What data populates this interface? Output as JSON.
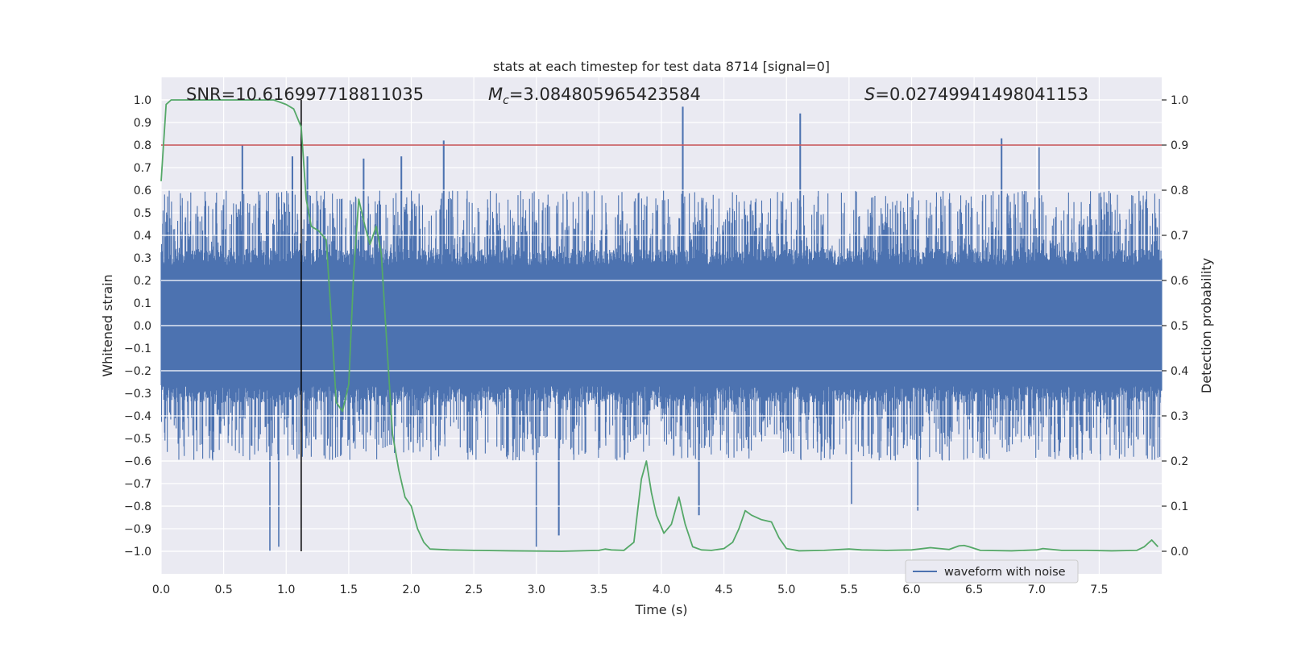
{
  "chart_data": {
    "type": "line",
    "title": "stats at each timestep for test data 8714 [signal=0]",
    "xlabel": "Time (s)",
    "ylabel_left": "Whitened strain",
    "ylabel_right": "Detection probability",
    "xlim": [
      0.0,
      8.0
    ],
    "ylim_left": [
      -1.1,
      1.1
    ],
    "ylim_right": [
      -0.05,
      1.05
    ],
    "xticks": [
      "0.0",
      "0.5",
      "1.0",
      "1.5",
      "2.0",
      "2.5",
      "3.0",
      "3.5",
      "4.0",
      "4.5",
      "5.0",
      "5.5",
      "6.0",
      "6.5",
      "7.0",
      "7.5"
    ],
    "yticks_left": [
      "1.0",
      "0.9",
      "0.8",
      "0.7",
      "0.6",
      "0.5",
      "0.4",
      "0.3",
      "0.2",
      "0.1",
      "0.0",
      "-0.1",
      "-0.2",
      "-0.3",
      "-0.4",
      "-0.5",
      "-0.6",
      "-0.7",
      "-0.8",
      "-0.9",
      "-1.0"
    ],
    "yticks_right": [
      "1.0",
      "0.9",
      "0.8",
      "0.7",
      "0.6",
      "0.5",
      "0.4",
      "0.3",
      "0.2",
      "0.1",
      "0.0"
    ],
    "annotations": {
      "snr": "SNR=10.616997718811035",
      "mc_symbol": "M",
      "mc_sub": "c",
      "mc_value": "=3.084805965423584",
      "s_symbol": "S",
      "s_value": "=0.02749941498041153"
    },
    "threshold_probability": 0.9,
    "vertical_marker_time": 1.12,
    "waveform": {
      "name": "waveform with noise",
      "color": "#4c72b0",
      "typical_peak_range": [
        0.25,
        0.6
      ],
      "spikes": [
        {
          "t": 0.65,
          "v": 0.8
        },
        {
          "t": 0.87,
          "v": -1.0
        },
        {
          "t": 0.94,
          "v": -0.98
        },
        {
          "t": 1.05,
          "v": 0.75
        },
        {
          "t": 1.17,
          "v": 0.75
        },
        {
          "t": 1.62,
          "v": 0.74
        },
        {
          "t": 1.92,
          "v": 0.75
        },
        {
          "t": 2.26,
          "v": 0.82
        },
        {
          "t": 3.0,
          "v": -0.98
        },
        {
          "t": 3.18,
          "v": -0.93
        },
        {
          "t": 4.17,
          "v": 0.97
        },
        {
          "t": 4.3,
          "v": -0.84
        },
        {
          "t": 5.11,
          "v": 0.94
        },
        {
          "t": 5.52,
          "v": -0.79
        },
        {
          "t": 6.05,
          "v": -0.82
        },
        {
          "t": 6.72,
          "v": 0.83
        },
        {
          "t": 7.02,
          "v": 0.79
        }
      ]
    },
    "probability": {
      "name": "detection probability",
      "color": "#55a868",
      "threshold_color": "#c44e52",
      "t": [
        0.0,
        0.04,
        0.08,
        0.12,
        0.2,
        0.3,
        0.4,
        0.5,
        0.6,
        0.7,
        0.8,
        0.9,
        1.0,
        1.06,
        1.12,
        1.16,
        1.2,
        1.26,
        1.32,
        1.36,
        1.4,
        1.45,
        1.5,
        1.54,
        1.58,
        1.63,
        1.67,
        1.72,
        1.76,
        1.8,
        1.85,
        1.9,
        1.95,
        2.0,
        2.05,
        2.1,
        2.15,
        2.3,
        2.5,
        2.8,
        3.2,
        3.5,
        3.55,
        3.6,
        3.7,
        3.78,
        3.84,
        3.88,
        3.92,
        3.96,
        4.02,
        4.08,
        4.14,
        4.19,
        4.25,
        4.32,
        4.4,
        4.5,
        4.57,
        4.62,
        4.67,
        4.72,
        4.8,
        4.88,
        4.94,
        5.0,
        5.1,
        5.3,
        5.5,
        5.6,
        5.8,
        6.0,
        6.15,
        6.3,
        6.38,
        6.42,
        6.46,
        6.55,
        6.8,
        7.0,
        7.05,
        7.2,
        7.4,
        7.6,
        7.8,
        7.86,
        7.92,
        7.97
      ],
      "p": [
        0.82,
        0.99,
        1.0,
        1.0,
        1.0,
        1.0,
        1.0,
        1.0,
        1.0,
        1.0,
        1.0,
        1.0,
        0.99,
        0.98,
        0.94,
        0.78,
        0.72,
        0.71,
        0.69,
        0.52,
        0.33,
        0.31,
        0.37,
        0.62,
        0.78,
        0.72,
        0.68,
        0.72,
        0.66,
        0.48,
        0.26,
        0.18,
        0.12,
        0.1,
        0.05,
        0.02,
        0.005,
        0.003,
        0.002,
        0.001,
        0.0,
        0.002,
        0.005,
        0.003,
        0.002,
        0.02,
        0.16,
        0.2,
        0.13,
        0.08,
        0.04,
        0.06,
        0.12,
        0.06,
        0.01,
        0.003,
        0.002,
        0.006,
        0.02,
        0.05,
        0.09,
        0.08,
        0.07,
        0.065,
        0.03,
        0.006,
        0.001,
        0.002,
        0.005,
        0.003,
        0.002,
        0.003,
        0.008,
        0.004,
        0.012,
        0.013,
        0.01,
        0.002,
        0.001,
        0.003,
        0.006,
        0.002,
        0.002,
        0.001,
        0.002,
        0.01,
        0.025,
        0.01
      ]
    },
    "legend": [
      "waveform with noise"
    ],
    "legend_position": "lower-right",
    "grid": true
  }
}
